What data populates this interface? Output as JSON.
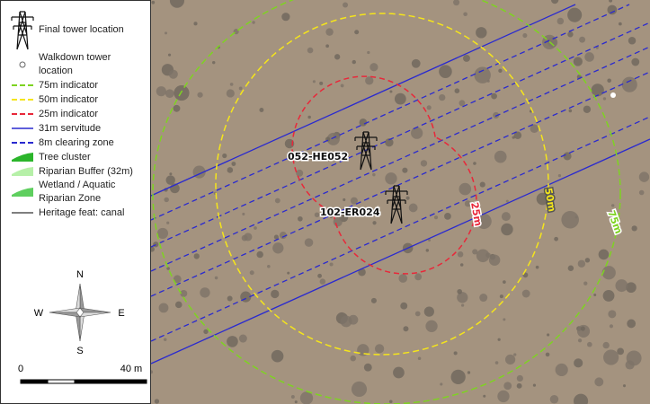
{
  "legend": {
    "items": [
      {
        "label": "Final tower location",
        "symbol": "tower"
      },
      {
        "label": "Walkdown tower location",
        "symbol": "circle"
      },
      {
        "label": "75m indicator",
        "symbol": "dash",
        "color": "#7ed321"
      },
      {
        "label": "50m indicator",
        "symbol": "dash",
        "color": "#f5e51b"
      },
      {
        "label": "25m indicator",
        "symbol": "dash",
        "color": "#e8283a"
      },
      {
        "label": "31m servitude",
        "symbol": "line",
        "color": "#2a2acf"
      },
      {
        "label": "8m clearing zone",
        "symbol": "dash",
        "color": "#2a2acf"
      },
      {
        "label": "Tree cluster",
        "symbol": "fill",
        "color": "#2bb52b"
      },
      {
        "label": "Riparian Buffer (32m)",
        "symbol": "fill",
        "color": "#b6f0a8"
      },
      {
        "label": "Wetland / Aquatic Riparian Zone",
        "symbol": "fill",
        "color": "#5fcf5f"
      },
      {
        "label": "Heritage feat: canal",
        "symbol": "line",
        "color": "#555555"
      }
    ]
  },
  "towers": [
    {
      "label": "052-HE052"
    },
    {
      "label": "102-ER024"
    }
  ],
  "buffer_labels": [
    "25m",
    "50m",
    "75m"
  ],
  "compass": {
    "n": "N",
    "s": "S",
    "e": "E",
    "w": "W"
  },
  "scale_bar": {
    "start": "0",
    "end": "40 m"
  }
}
